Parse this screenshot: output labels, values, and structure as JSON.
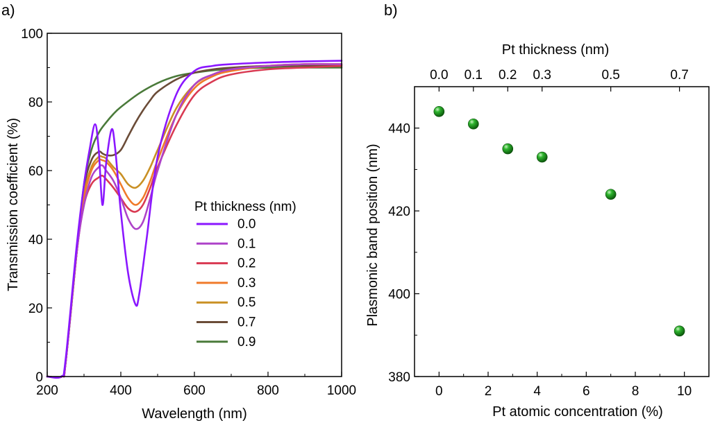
{
  "panel_a_label": "a)",
  "panel_b_label": "b)",
  "chart_data": [
    {
      "type": "line",
      "xlabel": "Wavelength (nm)",
      "ylabel": "Transmission coefficient (%)",
      "xlim": [
        200,
        1000
      ],
      "ylim": [
        0,
        100
      ],
      "x_ticks": [
        200,
        400,
        600,
        800,
        1000
      ],
      "y_ticks": [
        0,
        20,
        40,
        60,
        80,
        100
      ],
      "grid": false,
      "legend": {
        "title": "Pt thickness (nm)",
        "placement": "center-right"
      },
      "series": [
        {
          "name": "0.0",
          "color": "#8a17ff",
          "x": [
            200,
            238,
            250,
            280,
            300,
            315,
            330,
            340,
            350,
            360,
            375,
            385,
            400,
            420,
            440,
            450,
            470,
            500,
            550,
            600,
            650,
            700,
            800,
            900,
            1000
          ],
          "y": [
            0,
            0,
            5,
            38,
            56,
            66,
            73.5,
            66,
            50,
            62,
            72,
            66,
            48,
            30,
            21,
            24,
            40,
            64,
            82,
            89,
            90.5,
            91,
            91.5,
            91.8,
            92
          ]
        },
        {
          "name": "0.1",
          "color": "#ae43c9",
          "x": [
            200,
            240,
            250,
            280,
            300,
            320,
            340,
            350,
            360,
            380,
            400,
            420,
            440,
            460,
            480,
            500,
            550,
            600,
            650,
            700,
            800,
            900,
            1000
          ],
          "y": [
            0,
            0,
            4,
            36,
            50,
            58,
            61,
            61.5,
            60,
            57,
            52,
            46,
            43,
            45,
            52,
            60,
            76,
            85,
            88,
            89.5,
            90.5,
            91,
            91
          ]
        },
        {
          "name": "0.2",
          "color": "#d93a52",
          "x": [
            200,
            240,
            250,
            280,
            300,
            320,
            340,
            350,
            360,
            380,
            400,
            420,
            440,
            460,
            480,
            500,
            550,
            600,
            650,
            700,
            800,
            900,
            1000
          ],
          "y": [
            0,
            0,
            4,
            36,
            50,
            56,
            58,
            58.5,
            57.5,
            55,
            52,
            49,
            48,
            50,
            55,
            61,
            73,
            82,
            86,
            88,
            89.5,
            90,
            90.5
          ]
        },
        {
          "name": "0.3",
          "color": "#f07a2a",
          "x": [
            200,
            240,
            250,
            280,
            300,
            320,
            340,
            350,
            360,
            380,
            400,
            420,
            440,
            460,
            480,
            500,
            550,
            600,
            650,
            700,
            800,
            900,
            1000
          ],
          "y": [
            0,
            0,
            4,
            36,
            52,
            60,
            63,
            63,
            62.5,
            60,
            56,
            52,
            50,
            52,
            57,
            63,
            76,
            84,
            87.5,
            89,
            90.5,
            91,
            91
          ]
        },
        {
          "name": "0.5",
          "color": "#c99024",
          "x": [
            200,
            240,
            250,
            280,
            300,
            320,
            340,
            350,
            360,
            380,
            400,
            420,
            440,
            460,
            480,
            500,
            550,
            600,
            650,
            700,
            800,
            900,
            1000
          ],
          "y": [
            0,
            0,
            4,
            36,
            53,
            61,
            64,
            64,
            63.5,
            61,
            59,
            56,
            55,
            57,
            61,
            66,
            78,
            85,
            88,
            89.5,
            90.5,
            91,
            91
          ]
        },
        {
          "name": "0.7",
          "color": "#6b4c38",
          "x": [
            200,
            240,
            250,
            280,
            300,
            320,
            340,
            350,
            360,
            380,
            400,
            420,
            440,
            460,
            480,
            500,
            550,
            600,
            650,
            700,
            800,
            900,
            1000
          ],
          "y": [
            0,
            0,
            4,
            36,
            55,
            63,
            65.5,
            65,
            64.5,
            64.5,
            66,
            70,
            74,
            77.5,
            80.5,
            83,
            86.5,
            88.5,
            89.5,
            90,
            90.5,
            90.5,
            90.5
          ]
        },
        {
          "name": "0.9",
          "color": "#4a7a3a",
          "x": [
            200,
            240,
            250,
            280,
            300,
            320,
            340,
            360,
            380,
            400,
            450,
            500,
            550,
            600,
            650,
            700,
            800,
            900,
            1000
          ],
          "y": [
            0,
            0,
            4,
            36,
            56,
            66,
            71,
            74,
            76.5,
            78.5,
            82.5,
            85.5,
            87.5,
            88.5,
            89.2,
            89.6,
            90,
            90,
            90
          ]
        }
      ]
    },
    {
      "type": "scatter",
      "xlabel": "Pt atomic concentration (%)",
      "ylabel": "Plasmonic band position (nm)",
      "top_xlabel": "Pt thickness (nm)",
      "xlim": [
        -1,
        11
      ],
      "ylim": [
        380,
        450
      ],
      "x_ticks": [
        0,
        2,
        4,
        6,
        8,
        10
      ],
      "y_ticks": [
        380,
        400,
        420,
        440
      ],
      "top_ticks": [
        {
          "x": 0.0,
          "label": "0.0"
        },
        {
          "x": 1.4,
          "label": "0.1"
        },
        {
          "x": 2.8,
          "label": "0.2"
        },
        {
          "x": 4.2,
          "label": "0.3"
        },
        {
          "x": 7.0,
          "label": "0.5"
        },
        {
          "x": 9.8,
          "label": "0.7"
        }
      ],
      "grid": false,
      "marker_color": "#1a8a1a",
      "points": [
        {
          "x": 0.0,
          "y": 444
        },
        {
          "x": 1.4,
          "y": 441
        },
        {
          "x": 2.8,
          "y": 435
        },
        {
          "x": 4.2,
          "y": 433
        },
        {
          "x": 7.0,
          "y": 424
        },
        {
          "x": 9.8,
          "y": 391
        }
      ]
    }
  ]
}
